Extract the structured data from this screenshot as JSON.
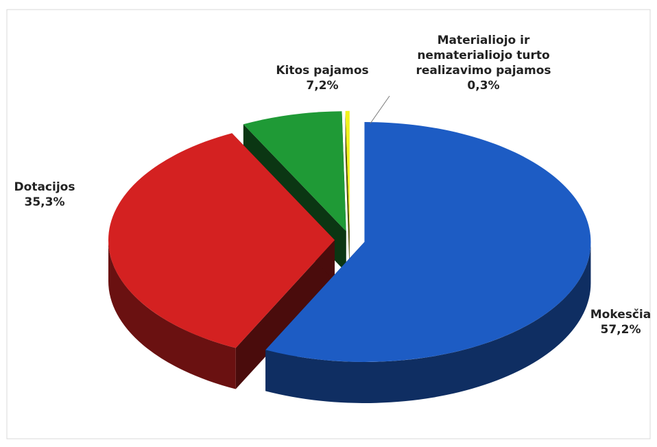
{
  "chart_data": {
    "type": "pie3d",
    "categories": [
      "Mokesčia",
      "Dotacijos",
      "Kitos pajamos",
      "Materialiojo ir nematerialiojo turto realizavimo pajamos"
    ],
    "values": [
      57.2,
      35.3,
      7.2,
      0.3
    ],
    "value_labels": [
      "57,2%",
      "35,3%",
      "7,2%",
      "0,3%"
    ],
    "colors": [
      "#1d5cc4",
      "#d42121",
      "#1f9a36",
      "#f2f21c"
    ]
  }
}
